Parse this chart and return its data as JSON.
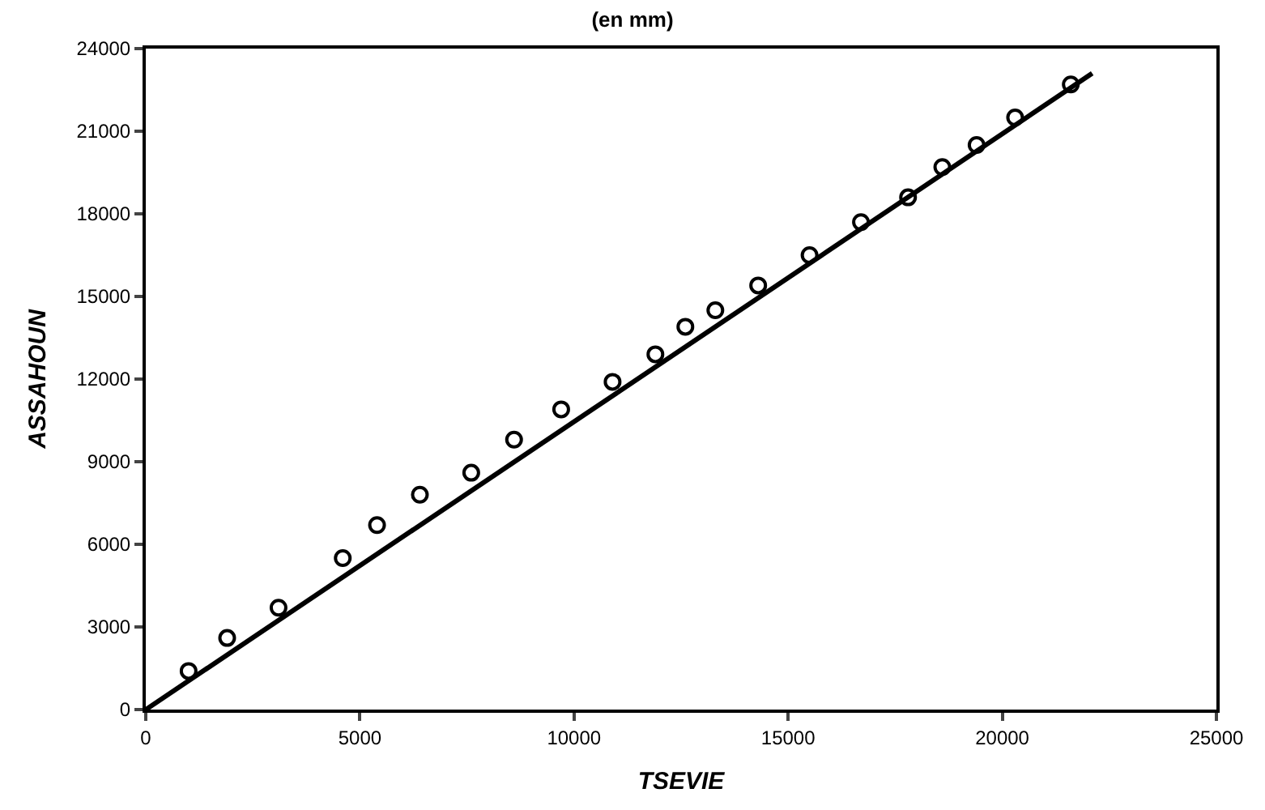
{
  "chart_data": {
    "type": "scatter",
    "title": "(en mm)",
    "xlabel": "TSEVIE",
    "ylabel": "ASSAHOUN",
    "xlim": [
      0,
      25000
    ],
    "xticks": [
      0,
      5000,
      10000,
      15000,
      20000,
      25000
    ],
    "ylim": [
      0,
      24000
    ],
    "yticks": [
      0,
      3000,
      6000,
      9000,
      12000,
      15000,
      18000,
      21000,
      24000
    ],
    "marker": "circle",
    "series": [
      {
        "color": "#000000",
        "x": [
          1000,
          1900,
          3100,
          4600,
          5400,
          6400,
          7600,
          8600,
          9700,
          10900,
          11900,
          12600,
          13300,
          14300,
          15500,
          16700,
          17800,
          18600,
          19400,
          20300,
          21600
        ],
        "values": [
          1400,
          2600,
          3700,
          5500,
          6700,
          7800,
          8600,
          9800,
          10900,
          11900,
          12900,
          13900,
          14500,
          15400,
          16500,
          17700,
          18600,
          19700,
          20500,
          21500,
          22700
        ]
      },
      {
        "type": "line",
        "color": "#000000",
        "line_style": "solid",
        "marker": "none",
        "x": [
          0,
          22100
        ],
        "values": [
          0,
          23100
        ]
      }
    ]
  }
}
